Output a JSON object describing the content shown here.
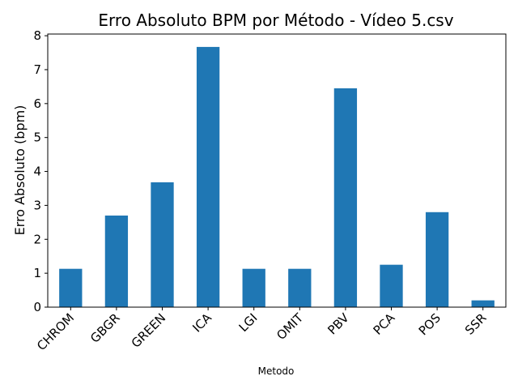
{
  "chart_data": {
    "type": "bar",
    "title": "Erro Absoluto BPM por Método - Vídeo 5.csv",
    "xlabel": "Metodo",
    "ylabel": "Erro Absoluto (bpm)",
    "categories": [
      "CHROM",
      "GBGR",
      "GREEN",
      "ICA",
      "LGI",
      "OMIT",
      "PBV",
      "PCA",
      "POS",
      "SSR"
    ],
    "values": [
      1.13,
      2.7,
      3.68,
      7.67,
      1.13,
      1.13,
      6.45,
      1.25,
      2.8,
      0.2
    ],
    "ylim": [
      0,
      8.05
    ],
    "yticks": [
      "0",
      "1",
      "2",
      "3",
      "4",
      "5",
      "6",
      "7",
      "8"
    ],
    "grid": false,
    "bar_color": "#1f77b4"
  }
}
